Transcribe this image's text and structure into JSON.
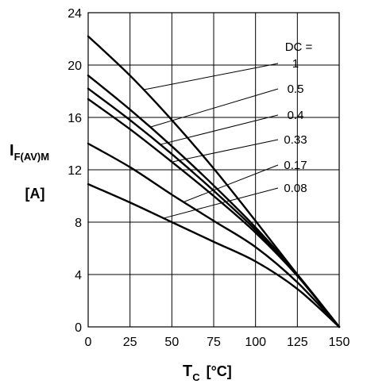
{
  "chart_data": {
    "type": "line",
    "xlabel_main": "T",
    "xlabel_sub": "C",
    "xlabel_unit": "[°C]",
    "ylabel_main": "I",
    "ylabel_sub": "F(AV)M",
    "ylabel_unit": "[A]",
    "xlim": [
      0,
      150
    ],
    "ylim": [
      0,
      24
    ],
    "x_ticks": [
      "0",
      "25",
      "50",
      "75",
      "100",
      "125",
      "150"
    ],
    "y_ticks": [
      "0",
      "4",
      "8",
      "12",
      "16",
      "20",
      "24"
    ],
    "grid": true,
    "legend_title": "DC =",
    "series": [
      {
        "name": "1",
        "x": [
          0,
          25,
          50,
          75,
          100,
          125,
          150
        ],
        "y": [
          22.2,
          19.2,
          15.8,
          12.1,
          8.1,
          4.0,
          0
        ]
      },
      {
        "name": "0.5",
        "x": [
          0,
          25,
          50,
          75,
          100,
          125,
          150
        ],
        "y": [
          19.2,
          16.6,
          13.8,
          10.8,
          7.6,
          4.0,
          0
        ]
      },
      {
        "name": "0.4",
        "x": [
          0,
          25,
          50,
          75,
          100,
          125,
          150
        ],
        "y": [
          18.2,
          15.8,
          13.2,
          10.4,
          7.4,
          3.9,
          0
        ]
      },
      {
        "name": "0.33",
        "x": [
          0,
          25,
          50,
          75,
          100,
          125,
          150
        ],
        "y": [
          17.4,
          15.1,
          12.6,
          10.0,
          7.2,
          3.9,
          0
        ]
      },
      {
        "name": "0.17",
        "x": [
          0,
          25,
          50,
          75,
          100,
          125,
          150
        ],
        "y": [
          14.0,
          12.2,
          10.1,
          8.1,
          6.1,
          3.4,
          0
        ]
      },
      {
        "name": "0.08",
        "x": [
          0,
          25,
          50,
          75,
          100,
          125,
          150
        ],
        "y": [
          10.9,
          9.5,
          8.0,
          6.5,
          5.0,
          2.9,
          0
        ]
      }
    ]
  }
}
